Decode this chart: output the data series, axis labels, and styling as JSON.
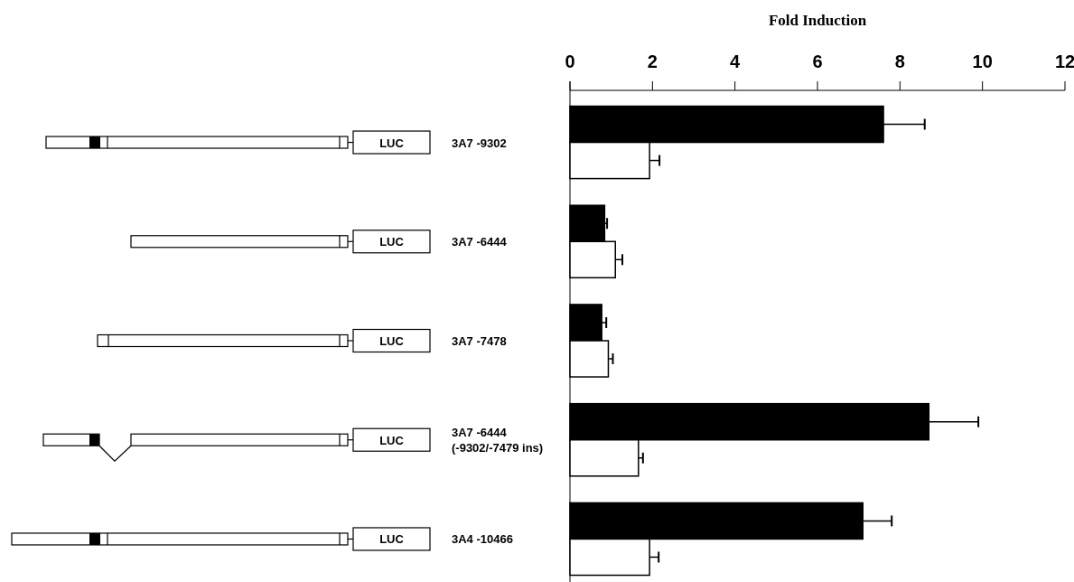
{
  "chart_data": {
    "type": "bar",
    "orientation": "horizontal",
    "xlabel": "Fold Induction",
    "categories": [
      "3A7 -9302",
      "3A7 -6444",
      "3A7 -7478",
      "3A7 -6444\n(-9302/-7479 ins)",
      "3A4 -10466"
    ],
    "series": [
      {
        "color": "#000000",
        "values": [
          7.6,
          0.84,
          0.77,
          8.7,
          7.1
        ],
        "errors": [
          [
            7.6,
            8.6
          ],
          [
            0.84,
            0.9
          ],
          [
            0.77,
            0.88
          ],
          [
            8.7,
            9.9
          ],
          [
            7.1,
            7.8
          ]
        ]
      },
      {
        "color": "#ffffff",
        "values": [
          1.93,
          1.1,
          0.93,
          1.66,
          1.93
        ],
        "errors": [
          [
            1.93,
            2.17
          ],
          [
            1.1,
            1.27
          ],
          [
            0.93,
            1.04
          ],
          [
            1.66,
            1.77
          ],
          [
            1.93,
            2.15
          ]
        ]
      }
    ],
    "xlim": [
      0,
      12
    ],
    "xticks": [
      0,
      2,
      4,
      6,
      8,
      10,
      12
    ],
    "grid": false,
    "annotations": [
      "LUC",
      "LUC",
      "LUC",
      "LUC",
      "LUC"
    ]
  }
}
